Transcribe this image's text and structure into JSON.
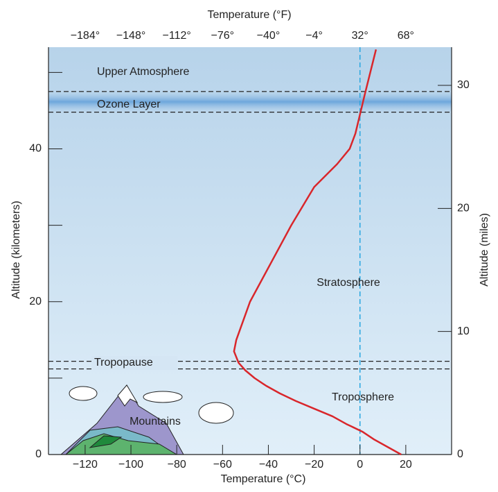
{
  "chart_data": {
    "type": "line",
    "title_top": "Temperature (°F)",
    "x_label": "Temperature (°C)",
    "y_label": "Altitude (kilometers)",
    "y2_label": "Altitude (miles)",
    "xlim": [
      -136,
      40
    ],
    "xticks": [
      {
        "value": -120,
        "label": "−120"
      },
      {
        "value": -100,
        "label": "−100"
      },
      {
        "value": -80,
        "label": "−80"
      },
      {
        "value": -60,
        "label": "−60"
      },
      {
        "value": -40,
        "label": "−40"
      },
      {
        "value": -20,
        "label": "−20"
      },
      0,
      20
    ],
    "x2lim": [
      -212.8,
      104
    ],
    "x2ticks": [
      {
        "value": -184,
        "label": "−184°"
      },
      {
        "value": -148,
        "label": "−148°"
      },
      {
        "value": -112,
        "label": "−112°"
      },
      {
        "value": -76,
        "label": "−76°"
      },
      {
        "value": -40,
        "label": "−40°"
      },
      {
        "value": -4,
        "label": "−4°"
      },
      {
        "value": 32,
        "label": "32°"
      },
      {
        "value": 68,
        "label": "68°"
      }
    ],
    "ylim": [
      0,
      53.3
    ],
    "yticks": [
      0,
      20,
      40
    ],
    "yminor": [
      10,
      30,
      50
    ],
    "y2lim": [
      0,
      33.1
    ],
    "y2ticks": [
      0,
      10,
      20,
      30
    ],
    "layer_bounds": [
      47.5,
      44.8,
      12.2,
      11.2
    ],
    "freezing_line": 0,
    "annotations": [
      "Upper Atmosphere",
      "Ozone Layer",
      "Stratosphere",
      "Tropopause",
      "Troposphere",
      "Mountains"
    ],
    "series": [
      {
        "color": "#d9262b",
        "x": [
          18,
          12,
          6,
          1,
          -6,
          -12,
          -20,
          -28,
          -35,
          -41,
          -46,
          -50,
          -53,
          -55,
          -54,
          -51,
          -48,
          -39,
          -30,
          -20,
          -10,
          -4.5,
          -2,
          0,
          2,
          4.5,
          7
        ],
        "values": [
          0,
          1,
          2,
          3,
          4,
          5,
          6,
          7,
          8,
          9,
          10,
          11,
          12,
          13.5,
          15,
          17.5,
          20,
          25,
          30,
          35,
          38,
          40,
          42,
          44.5,
          47,
          50,
          53
        ]
      }
    ]
  }
}
